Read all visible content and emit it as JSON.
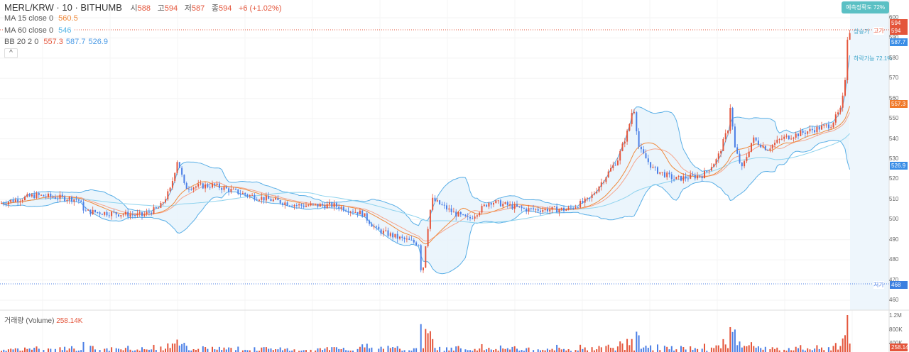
{
  "header": {
    "symbol": "MERL/KRW · 10 · BITHUMB",
    "open_label": "시",
    "open": "588",
    "high_label": "고",
    "high": "594",
    "low_label": "저",
    "low": "587",
    "close_label": "종",
    "close": "594",
    "change": "+6 (+1.02%)"
  },
  "indicators": {
    "ma15": {
      "label": "MA 15 close 0",
      "value": "560.5"
    },
    "ma60": {
      "label": "MA 60 close 0",
      "value": "546"
    },
    "bb": {
      "label": "BB 20 2 0",
      "basis": "557.3",
      "upper": "587.7",
      "lower": "526.9"
    }
  },
  "collapse_icon": "chevron-up-icon",
  "badge": "예측정확도 72%",
  "annotations": {
    "rise": "상승가",
    "fall": "하락가능 72.1%",
    "high": "고가",
    "low": "저가"
  },
  "price_axis": {
    "ticks": [
      "600",
      "590",
      "580",
      "570",
      "560",
      "550",
      "540",
      "530",
      "520",
      "510",
      "500",
      "490",
      "480",
      "470",
      "460"
    ],
    "tags": {
      "high": "594",
      "last": "594",
      "bb_upper": "587.7",
      "bb_basis": "557.3",
      "bb_lower": "526.9",
      "low": "468"
    }
  },
  "volume": {
    "label": "거래량 (Volume)",
    "value": "258.14K",
    "ticks": [
      "1.2M",
      "800K",
      "400K"
    ],
    "tag": "258.14K"
  },
  "colors": {
    "up": "#e4553b",
    "down": "#4b7fe6",
    "ma15": "#f08a3c",
    "ma60": "#8fd3ee",
    "bb": "#58aee6",
    "bb_fill": "#e6f3fb",
    "badge": "#5bc0c4"
  },
  "price_path": [
    [
      0,
      508
    ],
    [
      50,
      512
    ],
    [
      110,
      510
    ],
    [
      120,
      504
    ],
    [
      200,
      502
    ],
    [
      225,
      506
    ],
    [
      240,
      515
    ],
    [
      250,
      530
    ],
    [
      260,
      516
    ],
    [
      300,
      517
    ],
    [
      350,
      512
    ],
    [
      420,
      507
    ],
    [
      470,
      507
    ],
    [
      510,
      503
    ],
    [
      530,
      495
    ],
    [
      560,
      491
    ],
    [
      590,
      488
    ],
    [
      594,
      470
    ],
    [
      600,
      490
    ],
    [
      608,
      510
    ],
    [
      640,
      503
    ],
    [
      660,
      500
    ],
    [
      690,
      509
    ],
    [
      740,
      505
    ],
    [
      800,
      505
    ],
    [
      830,
      510
    ],
    [
      850,
      520
    ],
    [
      870,
      530
    ],
    [
      885,
      545
    ],
    [
      892,
      557
    ],
    [
      900,
      535
    ],
    [
      920,
      525
    ],
    [
      950,
      520
    ],
    [
      990,
      522
    ],
    [
      1010,
      530
    ],
    [
      1025,
      545
    ],
    [
      1028,
      557
    ],
    [
      1035,
      535
    ],
    [
      1045,
      525
    ],
    [
      1060,
      540
    ],
    [
      1080,
      535
    ],
    [
      1100,
      540
    ],
    [
      1150,
      545
    ],
    [
      1170,
      547
    ],
    [
      1185,
      555
    ],
    [
      1190,
      570
    ],
    [
      1193,
      590
    ],
    [
      1197,
      594
    ]
  ]
}
